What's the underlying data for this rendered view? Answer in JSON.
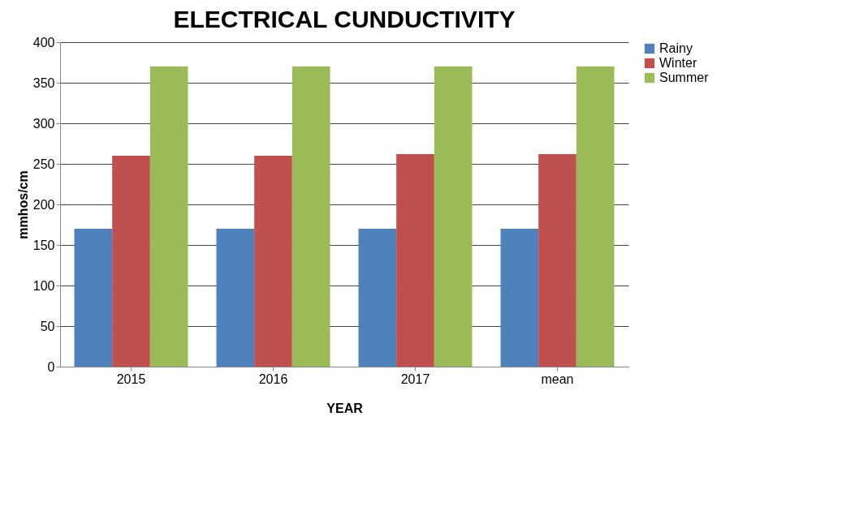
{
  "chart_data": {
    "type": "bar",
    "title": "ELECTRICAL CUNDUCTIVITY",
    "xlabel": "YEAR",
    "ylabel": "mmhos/cm",
    "categories": [
      "2015",
      "2016",
      "2017",
      "mean"
    ],
    "series": [
      {
        "name": "Rainy",
        "color": "#4f81bd",
        "values": [
          170,
          170,
          170,
          170
        ]
      },
      {
        "name": "Winter",
        "color": "#c0504d",
        "values": [
          260,
          260,
          262,
          262
        ]
      },
      {
        "name": "Summer",
        "color": "#9bbb59",
        "values": [
          370,
          370,
          370,
          370
        ]
      }
    ],
    "ylim": [
      0,
      400
    ],
    "yticks": [
      0,
      50,
      100,
      150,
      200,
      250,
      300,
      350,
      400
    ],
    "grid": "y",
    "legend": "right"
  }
}
